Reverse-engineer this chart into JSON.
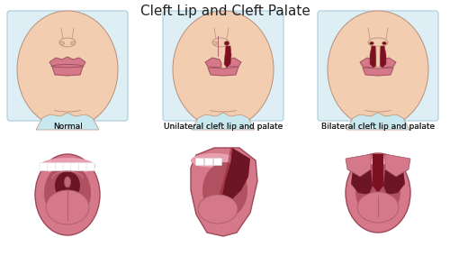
{
  "title": "Cleft Lip and Cleft Palate",
  "title_fontsize": 11,
  "labels": [
    "Normal",
    "Unilateral cleft lip and palate",
    "Bilateral cleft lip and palate"
  ],
  "label_fontsize": 6.5,
  "face_skin": "#f2cdb0",
  "face_skin_shadow": "#e8b898",
  "face_outline": "#b8907a",
  "lip_color": "#d4788a",
  "lip_dark": "#a05060",
  "lip_highlight": "#e090a0",
  "cleft_dark": "#7a1020",
  "cleft_mid": "#9b2535",
  "box_bg": "#ddeef5",
  "box_outline": "#aaccdd",
  "neck_color": "#c8e8f0",
  "mouth_pink": "#d4788a",
  "mouth_dark_red": "#8b2030",
  "mouth_inner": "#b05060",
  "tongue_color": "#d4788a",
  "tongue_line": "#b06070",
  "teeth_color": "#ffffff",
  "gum_color": "#e8a0b0",
  "throat_dark": "#6b1525",
  "uvula_color": "#c06878",
  "mouth_outline": "#a04858"
}
